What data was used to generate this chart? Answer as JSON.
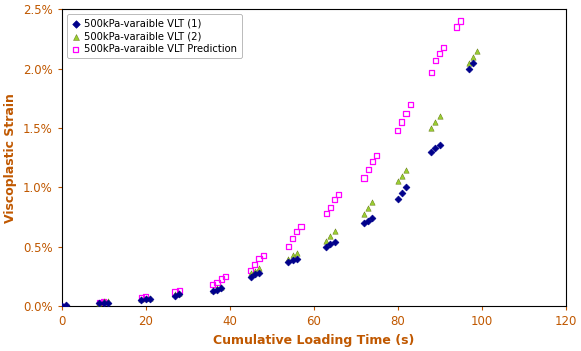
{
  "title": "",
  "xlabel": "Cumulative Loading Time (s)",
  "ylabel": "Viscoplastic Strain",
  "xlim": [
    0,
    120
  ],
  "ylim": [
    0,
    0.025
  ],
  "legend_labels": [
    "500kPa-varaible VLT (1)",
    "500kPa-varaible VLT (2)",
    "500kPa-varaible VLT Prediction"
  ],
  "series1_color": "#00008B",
  "series2_color": "#9ACD32",
  "series3_color": "#FF00FF",
  "series1_marker": "D",
  "series2_marker": "^",
  "series3_marker": "s",
  "series1_x": [
    0,
    1,
    9,
    10,
    11,
    19,
    20,
    21,
    27,
    28,
    36,
    37,
    38,
    45,
    46,
    47,
    54,
    55,
    56,
    63,
    64,
    65,
    72,
    73,
    74,
    80,
    81,
    82,
    88,
    89,
    90,
    97,
    98
  ],
  "series1_y": [
    0.0,
    0.0001,
    0.0003,
    0.0003,
    0.0003,
    0.0005,
    0.0006,
    0.0006,
    0.0009,
    0.001,
    0.0013,
    0.0014,
    0.0015,
    0.0025,
    0.0027,
    0.0028,
    0.0037,
    0.0039,
    0.004,
    0.005,
    0.0052,
    0.0054,
    0.007,
    0.0072,
    0.0074,
    0.009,
    0.0095,
    0.01,
    0.013,
    0.0133,
    0.0136,
    0.02,
    0.0205
  ],
  "series2_x": [
    0,
    1,
    9,
    10,
    11,
    19,
    20,
    21,
    27,
    28,
    36,
    37,
    38,
    45,
    46,
    47,
    54,
    55,
    56,
    63,
    64,
    65,
    72,
    73,
    74,
    80,
    81,
    82,
    88,
    89,
    90,
    97,
    98,
    99
  ],
  "series2_y": [
    0.0,
    0.0001,
    0.0003,
    0.0004,
    0.0004,
    0.0006,
    0.0007,
    0.0007,
    0.001,
    0.0011,
    0.0014,
    0.0015,
    0.0016,
    0.0028,
    0.003,
    0.0032,
    0.004,
    0.0043,
    0.0045,
    0.0055,
    0.0059,
    0.0063,
    0.0078,
    0.0083,
    0.0088,
    0.0105,
    0.011,
    0.0115,
    0.015,
    0.0155,
    0.016,
    0.0205,
    0.021,
    0.0215
  ],
  "series3_x": [
    0,
    9,
    10,
    19,
    20,
    27,
    28,
    36,
    37,
    38,
    39,
    45,
    46,
    47,
    48,
    54,
    55,
    56,
    57,
    63,
    64,
    65,
    66,
    72,
    73,
    74,
    75,
    80,
    81,
    82,
    83,
    88,
    89,
    90,
    91,
    94,
    95
  ],
  "series3_y": [
    0.0,
    0.0003,
    0.0004,
    0.0007,
    0.0008,
    0.0012,
    0.0013,
    0.0018,
    0.002,
    0.0023,
    0.0025,
    0.003,
    0.0035,
    0.004,
    0.0043,
    0.005,
    0.0057,
    0.0063,
    0.0067,
    0.0078,
    0.0083,
    0.009,
    0.0094,
    0.0108,
    0.0115,
    0.0122,
    0.0127,
    0.0148,
    0.0155,
    0.0162,
    0.017,
    0.0197,
    0.0207,
    0.0213,
    0.0218,
    0.0235,
    0.024
  ],
  "background_color": "#FFFFFF",
  "axis_label_color": "#C05800",
  "tick_label_color": "#C05800",
  "axis_spine_color": "#000000",
  "figwidth": 5.81,
  "figheight": 3.51,
  "dpi": 100
}
